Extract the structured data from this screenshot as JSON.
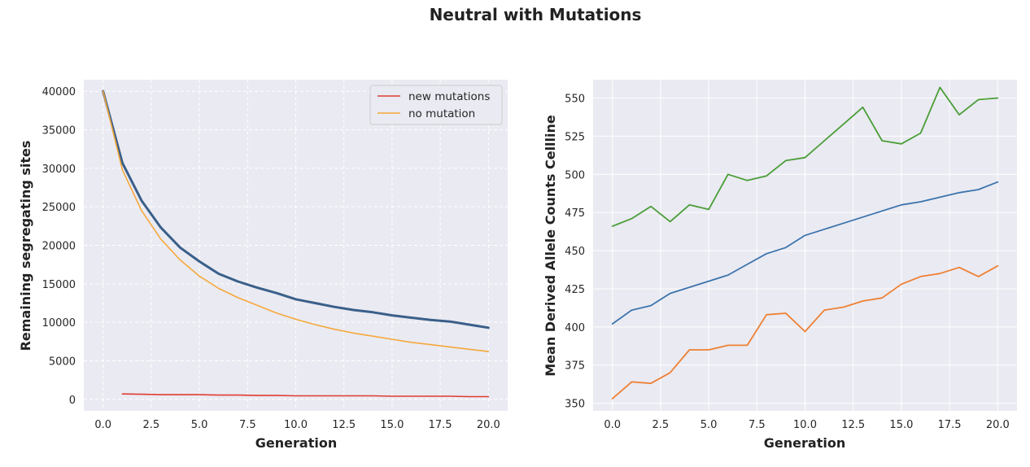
{
  "figure": {
    "title": "Neutral with Mutations"
  },
  "chart_data": [
    {
      "type": "line",
      "xlabel": "Generation",
      "ylabel": "Remaining segregating sites",
      "xlim": [
        -1,
        21
      ],
      "ylim": [
        -1500,
        41500
      ],
      "xticks": [
        "0.0",
        "2.5",
        "5.0",
        "7.5",
        "10.0",
        "12.5",
        "15.0",
        "17.5",
        "20.0"
      ],
      "yticks": [
        "0",
        "5000",
        "10000",
        "15000",
        "20000",
        "25000",
        "30000",
        "35000",
        "40000"
      ],
      "grid": true,
      "grid_style": "dashed",
      "legend": {
        "position": "top-right",
        "entries": [
          "new mutations",
          "no mutation"
        ]
      },
      "series": [
        {
          "name": "",
          "color": "#3a5f8a",
          "width": 3,
          "x": [
            0,
            1,
            2,
            3,
            4,
            5,
            6,
            7,
            8,
            9,
            10,
            11,
            12,
            13,
            14,
            15,
            16,
            17,
            18,
            19,
            20
          ],
          "y": [
            40000,
            30700,
            25800,
            22300,
            19700,
            17900,
            16300,
            15300,
            14500,
            13800,
            13000,
            12500,
            12000,
            11600,
            11300,
            10900,
            10600,
            10300,
            10100,
            9700,
            9300
          ]
        },
        {
          "name": "new mutations",
          "color": "#e03c31",
          "width": 1.6,
          "x": [
            1,
            2,
            3,
            4,
            5,
            6,
            7,
            8,
            9,
            10,
            11,
            12,
            13,
            14,
            15,
            16,
            17,
            18,
            19,
            20
          ],
          "y": [
            700,
            650,
            600,
            600,
            600,
            550,
            550,
            500,
            500,
            450,
            450,
            450,
            450,
            450,
            400,
            400,
            400,
            400,
            350,
            350
          ]
        },
        {
          "name": "no mutation",
          "color": "#f5a83b",
          "width": 1.6,
          "x": [
            0,
            1,
            2,
            3,
            4,
            5,
            6,
            7,
            8,
            9,
            10,
            11,
            12,
            13,
            14,
            15,
            16,
            17,
            18,
            19,
            20
          ],
          "y": [
            40000,
            29800,
            24500,
            20800,
            18100,
            16000,
            14400,
            13200,
            12200,
            11200,
            10400,
            9700,
            9100,
            8600,
            8200,
            7800,
            7400,
            7100,
            6800,
            6500,
            6200
          ]
        }
      ]
    },
    {
      "type": "line",
      "xlabel": "Generation",
      "ylabel": "Mean Derived Allele Counts Cellline",
      "xlim": [
        -1,
        21
      ],
      "ylim": [
        345,
        562
      ],
      "xticks": [
        "0.0",
        "2.5",
        "5.0",
        "7.5",
        "10.0",
        "12.5",
        "15.0",
        "17.5",
        "20.0"
      ],
      "yticks": [
        "350",
        "375",
        "400",
        "425",
        "450",
        "475",
        "500",
        "525",
        "550"
      ],
      "grid": true,
      "grid_style": "solid",
      "series": [
        {
          "name": "",
          "color": "#4a9e37",
          "width": 1.8,
          "x": [
            0,
            1,
            2,
            3,
            4,
            5,
            6,
            7,
            8,
            9,
            10,
            11,
            12,
            13,
            14,
            15,
            16,
            17,
            18,
            19,
            20
          ],
          "y": [
            466,
            471,
            479,
            469,
            480,
            477,
            500,
            496,
            499,
            509,
            511,
            522,
            533,
            544,
            522,
            520,
            527,
            557,
            539,
            549,
            550
          ]
        },
        {
          "name": "",
          "color": "#3c74ad",
          "width": 1.8,
          "x": [
            0,
            1,
            2,
            3,
            4,
            5,
            6,
            7,
            8,
            9,
            10,
            11,
            12,
            13,
            14,
            15,
            16,
            17,
            18,
            19,
            20
          ],
          "y": [
            402,
            411,
            414,
            422,
            426,
            430,
            434,
            441,
            448,
            452,
            460,
            464,
            468,
            472,
            476,
            480,
            482,
            485,
            488,
            490,
            495
          ]
        },
        {
          "name": "",
          "color": "#ee8033",
          "width": 1.8,
          "x": [
            0,
            1,
            2,
            3,
            4,
            5,
            6,
            7,
            8,
            9,
            10,
            11,
            12,
            13,
            14,
            15,
            16,
            17,
            18,
            19,
            20
          ],
          "y": [
            353,
            364,
            363,
            370,
            385,
            385,
            388,
            388,
            408,
            409,
            397,
            411,
            413,
            417,
            419,
            428,
            433,
            435,
            439,
            433,
            440
          ]
        }
      ]
    }
  ]
}
